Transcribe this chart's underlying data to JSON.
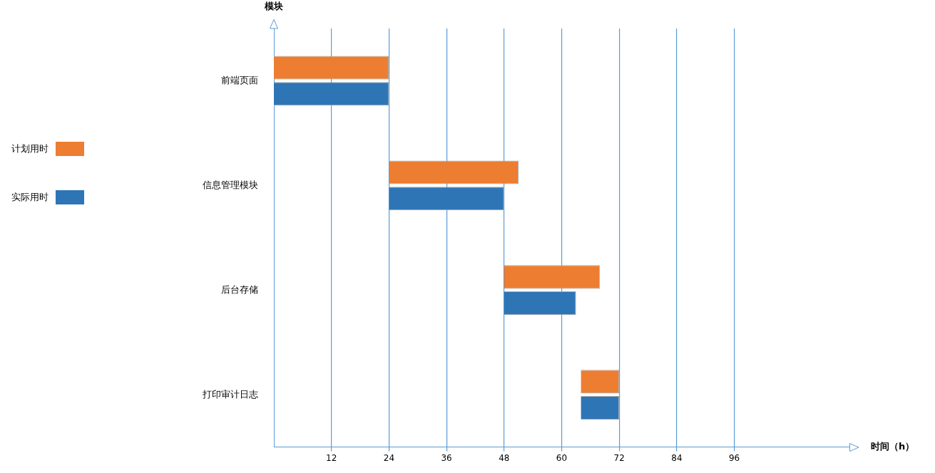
{
  "chart_data": {
    "type": "bar",
    "orientation": "horizontal",
    "xlabel": "时间（h）",
    "ylabel": "模块",
    "categories": [
      "前端页面",
      "信息管理模块",
      "后台存储",
      "打印审计日志"
    ],
    "series": [
      {
        "name": "计划用时",
        "color": "#ed7d31",
        "base": [
          0,
          24,
          48,
          64
        ],
        "values": [
          24,
          27,
          20,
          8
        ]
      },
      {
        "name": "实际用时",
        "color": "#2e75b6",
        "base": [
          0,
          24,
          48,
          64
        ],
        "values": [
          24,
          24,
          15,
          8
        ]
      }
    ],
    "xlim": [
      0,
      120
    ],
    "xticks": [
      12,
      24,
      36,
      48,
      60,
      72,
      84,
      96
    ],
    "grid": "x",
    "legend": "left"
  }
}
